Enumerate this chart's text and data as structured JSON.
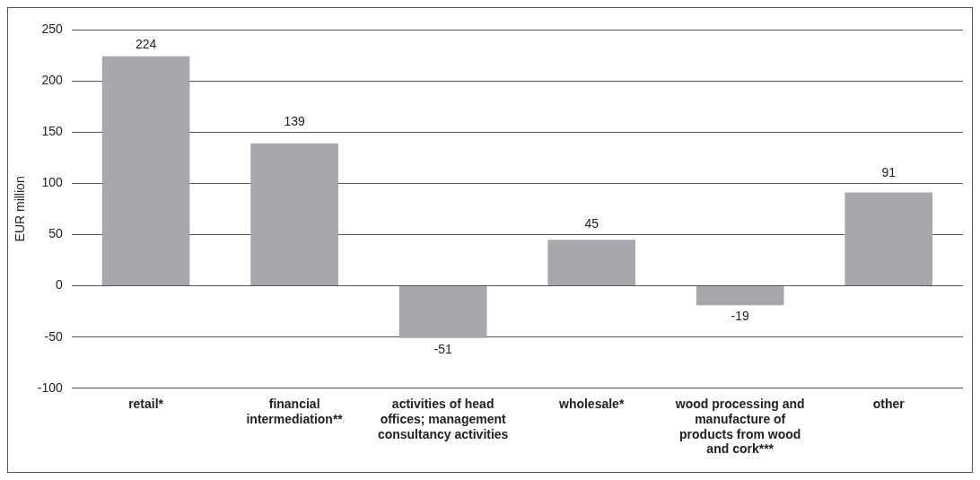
{
  "chart_data": {
    "type": "bar",
    "ylabel": "EUR million",
    "categories": [
      "retail*",
      "financial intermediation**",
      "activities of head offices; management consultancy activities",
      "wholesale*",
      "wood processing and manufacture of products from wood and cork***",
      "other"
    ],
    "values": [
      224,
      139,
      -51,
      45,
      -19,
      91
    ],
    "color": "#a7a8ab",
    "ylim": [
      -100,
      250
    ],
    "yticks": [
      -100,
      -50,
      0,
      50,
      100,
      150,
      200,
      250
    ],
    "grid": "y",
    "legend": false,
    "data_labels": true
  }
}
